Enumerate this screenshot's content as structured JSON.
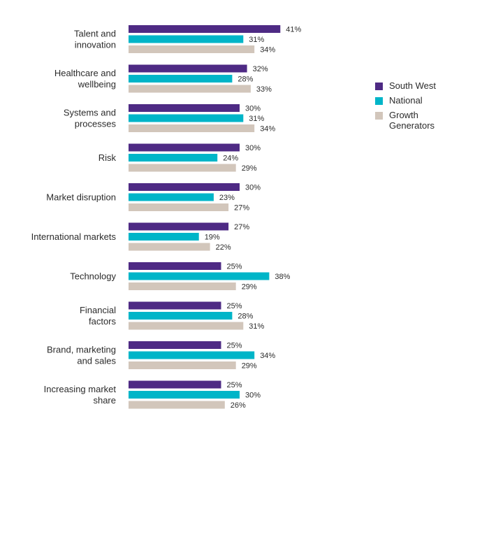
{
  "chart_data": {
    "type": "bar",
    "orientation": "horizontal",
    "categories": [
      "Talent and innovation",
      "Healthcare and wellbeing",
      "Systems and processes",
      "Risk",
      "Market disruption",
      "International markets",
      "Technology",
      "Financial factors",
      "Brand, marketing and sales",
      "Increasing market share"
    ],
    "series": [
      {
        "name": "South West",
        "color": "#4e2a84",
        "values": [
          41,
          32,
          30,
          30,
          30,
          27,
          25,
          25,
          25,
          25
        ]
      },
      {
        "name": "National",
        "color": "#00b5c8",
        "values": [
          31,
          28,
          31,
          24,
          23,
          19,
          38,
          28,
          34,
          30
        ]
      },
      {
        "name": "Growth Generators",
        "color": "#d2c6bb",
        "values": [
          34,
          33,
          34,
          29,
          27,
          22,
          29,
          31,
          29,
          26
        ]
      }
    ],
    "value_suffix": "%",
    "xlim": [
      0,
      45
    ],
    "grid": false,
    "legend_position": "right"
  }
}
